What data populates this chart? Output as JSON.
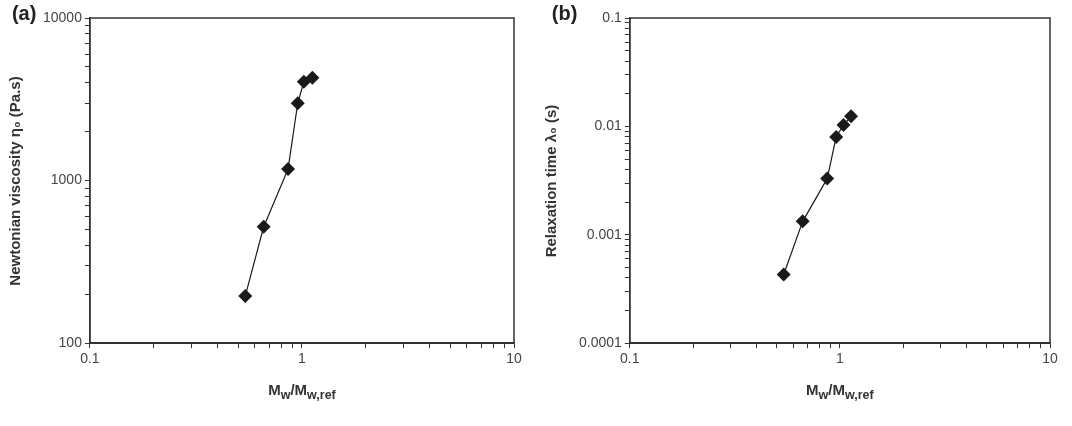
{
  "chart_data": [
    {
      "type": "line",
      "title": "(a)",
      "xlabel": "M$_{w}$/M$_{w,ref}$",
      "ylabel": "Newtonian viscosity η₀ (Pa.s)",
      "log": "xy",
      "marker": "diamond",
      "line_style": "solid",
      "x": [
        0.54,
        0.66,
        0.86,
        0.955,
        1.02,
        1.12
      ],
      "series": [
        {
          "color": "#1a1a1a",
          "values": [
            195,
            520,
            1180,
            2990,
            4050,
            4290
          ]
        }
      ],
      "xlim": [
        0.1,
        10
      ],
      "ylim": [
        100,
        10000
      ],
      "xticks": [
        0.1,
        {
          "value": 0.2,
          "label": null
        },
        {
          "value": 0.3,
          "label": null
        },
        {
          "value": 0.4,
          "label": null
        },
        {
          "value": 0.5,
          "label": null
        },
        {
          "value": 0.6,
          "label": null
        },
        {
          "value": 0.7,
          "label": null
        },
        {
          "value": 0.8,
          "label": null
        },
        {
          "value": 0.9,
          "label": null
        },
        1,
        {
          "value": 2,
          "label": null
        },
        {
          "value": 3,
          "label": null
        },
        {
          "value": 4,
          "label": null
        },
        {
          "value": 5,
          "label": null
        },
        {
          "value": 6,
          "label": null
        },
        {
          "value": 7,
          "label": null
        },
        {
          "value": 8,
          "label": null
        },
        {
          "value": 9,
          "label": null
        },
        10
      ],
      "yticks": [
        100,
        {
          "value": 200,
          "label": null
        },
        {
          "value": 300,
          "label": null
        },
        {
          "value": 400,
          "label": null
        },
        {
          "value": 500,
          "label": null
        },
        {
          "value": 600,
          "label": null
        },
        {
          "value": 700,
          "label": null
        },
        {
          "value": 800,
          "label": null
        },
        {
          "value": 900,
          "label": null
        },
        1000,
        {
          "value": 2000,
          "label": null
        },
        {
          "value": 3000,
          "label": null
        },
        {
          "value": 4000,
          "label": null
        },
        {
          "value": 5000,
          "label": null
        },
        {
          "value": 6000,
          "label": null
        },
        {
          "value": 7000,
          "label": null
        },
        {
          "value": 8000,
          "label": null
        },
        {
          "value": 9000,
          "label": null
        },
        10000
      ]
    },
    {
      "type": "line",
      "title": "(b)",
      "xlabel": "M$_{w}$/M$_{w,ref}$",
      "ylabel": "Relaxation time λ₀ (s)",
      "log": "xy",
      "marker": "diamond",
      "line_style": "solid",
      "x": [
        0.54,
        0.665,
        0.87,
        0.96,
        1.04,
        1.13
      ],
      "series": [
        {
          "color": "#1a1a1a",
          "values": [
            0.00043,
            0.00133,
            0.0033,
            0.008,
            0.0103,
            0.0124
          ]
        }
      ],
      "xlim": [
        0.1,
        10
      ],
      "ylim": [
        0.0001,
        0.1
      ],
      "xticks": [
        0.1,
        {
          "value": 0.2,
          "label": null
        },
        {
          "value": 0.3,
          "label": null
        },
        {
          "value": 0.4,
          "label": null
        },
        {
          "value": 0.5,
          "label": null
        },
        {
          "value": 0.6,
          "label": null
        },
        {
          "value": 0.7,
          "label": null
        },
        {
          "value": 0.8,
          "label": null
        },
        {
          "value": 0.9,
          "label": null
        },
        1,
        {
          "value": 2,
          "label": null
        },
        {
          "value": 3,
          "label": null
        },
        {
          "value": 4,
          "label": null
        },
        {
          "value": 5,
          "label": null
        },
        {
          "value": 6,
          "label": null
        },
        {
          "value": 7,
          "label": null
        },
        {
          "value": 8,
          "label": null
        },
        {
          "value": 9,
          "label": null
        },
        10
      ],
      "yticks": [
        0.0001,
        {
          "value": 0.0002,
          "label": null
        },
        {
          "value": 0.0003,
          "label": null
        },
        {
          "value": 0.0004,
          "label": null
        },
        {
          "value": 0.0005,
          "label": null
        },
        {
          "value": 0.0006,
          "label": null
        },
        {
          "value": 0.0007,
          "label": null
        },
        {
          "value": 0.0008,
          "label": null
        },
        {
          "value": 0.0009,
          "label": null
        },
        0.001,
        {
          "value": 0.002,
          "label": null
        },
        {
          "value": 0.003,
          "label": null
        },
        {
          "value": 0.004,
          "label": null
        },
        {
          "value": 0.005,
          "label": null
        },
        {
          "value": 0.006,
          "label": null
        },
        {
          "value": 0.007,
          "label": null
        },
        {
          "value": 0.008,
          "label": null
        },
        {
          "value": 0.009,
          "label": null
        },
        0.01,
        {
          "value": 0.02,
          "label": null
        },
        {
          "value": 0.03,
          "label": null
        },
        {
          "value": 0.04,
          "label": null
        },
        {
          "value": 0.05,
          "label": null
        },
        {
          "value": 0.06,
          "label": null
        },
        {
          "value": 0.07,
          "label": null
        },
        {
          "value": 0.08,
          "label": null
        },
        {
          "value": 0.09,
          "label": null
        },
        0.1
      ]
    }
  ]
}
